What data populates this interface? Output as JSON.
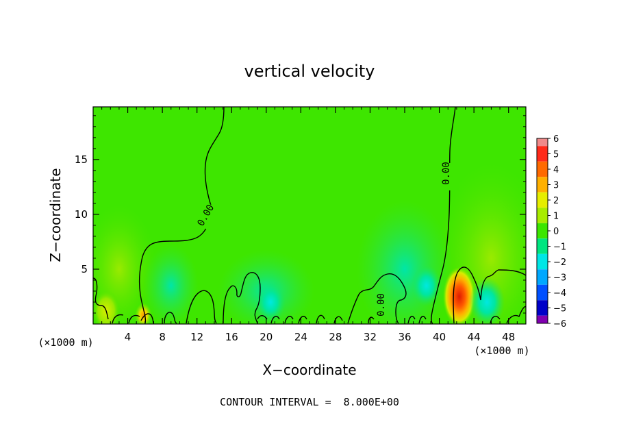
{
  "chart_data": {
    "type": "heatmap",
    "title": "vertical velocity",
    "xlabel": "X−coordinate",
    "ylabel": "Z−coordinate",
    "x_unit_left": "(×1000 m)",
    "x_unit_right": "(×1000 m)",
    "xlim": [
      0,
      50
    ],
    "ylim": [
      0,
      19.8
    ],
    "xticks": [
      4,
      8,
      12,
      16,
      20,
      24,
      28,
      32,
      36,
      40,
      44,
      48
    ],
    "yticks": [
      5,
      10,
      15
    ],
    "contour_labels": [
      "0.00",
      "0.00",
      "0.00"
    ],
    "contour_interval_text": "CONTOUR INTERVAL =  8.000E+00",
    "colorbar": {
      "levels": [
        6,
        5,
        4,
        3,
        2,
        1,
        0,
        -1,
        -2,
        -3,
        -4,
        -5,
        -6
      ],
      "labels": [
        "6",
        "5",
        "4",
        "3",
        "2",
        "1",
        "0",
        "−1",
        "−2",
        "−3",
        "−4",
        "−5",
        "−6"
      ],
      "colors": [
        "#f08a8a",
        "#ff2a1a",
        "#ff6a00",
        "#ffb000",
        "#e6ee00",
        "#a8ec00",
        "#3ce600",
        "#00e680",
        "#00e6e6",
        "#00a8ff",
        "#0050ff",
        "#0000c8",
        "#8000b0"
      ]
    },
    "features": [
      {
        "x": 42.3,
        "z": 2.5,
        "value": 4.5
      },
      {
        "x": 5.8,
        "z": 0.8,
        "value": 2.8
      },
      {
        "x": 1.5,
        "z": 1.2,
        "value": 1.6
      },
      {
        "x": 45.5,
        "z": 2.0,
        "value": -1.8
      },
      {
        "x": 38.5,
        "z": 3.5,
        "value": -1.3
      },
      {
        "x": 20.5,
        "z": 2.0,
        "value": -1.2
      }
    ]
  }
}
